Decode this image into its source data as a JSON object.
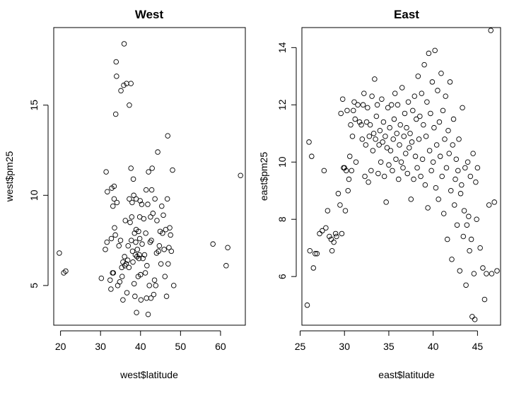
{
  "chart_data": [
    {
      "type": "scatter",
      "title": "West",
      "xlabel": "west$latitude",
      "ylabel": "west$pm25",
      "xlim": [
        18.3,
        66.2
      ],
      "ylim": [
        2.8,
        19.3
      ],
      "xticks": [
        20,
        30,
        40,
        50,
        60
      ],
      "yticks": [
        5,
        10,
        15
      ],
      "grid": false,
      "points": [
        [
          19.7,
          6.8
        ],
        [
          20.8,
          5.7
        ],
        [
          21.3,
          5.8
        ],
        [
          30.2,
          5.4
        ],
        [
          31.2,
          7.0
        ],
        [
          31.4,
          11.3
        ],
        [
          31.6,
          7.4
        ],
        [
          31.7,
          10.2
        ],
        [
          32.4,
          5.3
        ],
        [
          32.6,
          4.8
        ],
        [
          32.7,
          7.6
        ],
        [
          32.8,
          10.4
        ],
        [
          33.0,
          5.7
        ],
        [
          33.1,
          9.4
        ],
        [
          33.2,
          5.7
        ],
        [
          33.4,
          9.8
        ],
        [
          33.4,
          10.5
        ],
        [
          33.5,
          8.2
        ],
        [
          33.7,
          7.8
        ],
        [
          33.8,
          14.5
        ],
        [
          33.9,
          17.4
        ],
        [
          34.0,
          16.6
        ],
        [
          34.1,
          9.6
        ],
        [
          34.3,
          5.0
        ],
        [
          34.6,
          7.2
        ],
        [
          34.8,
          5.2
        ],
        [
          35.0,
          7.5
        ],
        [
          35.1,
          15.8
        ],
        [
          35.3,
          6.0
        ],
        [
          35.4,
          5.5
        ],
        [
          35.6,
          4.2
        ],
        [
          35.6,
          6.3
        ],
        [
          35.8,
          16.1
        ],
        [
          35.9,
          18.4
        ],
        [
          36.0,
          6.6
        ],
        [
          36.1,
          6.1
        ],
        [
          36.2,
          8.6
        ],
        [
          36.4,
          6.2
        ],
        [
          36.5,
          16.2
        ],
        [
          36.6,
          4.6
        ],
        [
          36.8,
          6.4
        ],
        [
          36.9,
          7.2
        ],
        [
          37.1,
          6.0
        ],
        [
          37.2,
          15.0
        ],
        [
          37.2,
          9.8
        ],
        [
          37.4,
          8.5
        ],
        [
          37.6,
          11.5
        ],
        [
          37.6,
          16.2
        ],
        [
          37.7,
          7.5
        ],
        [
          37.8,
          8.8
        ],
        [
          37.9,
          9.6
        ],
        [
          38.0,
          6.9
        ],
        [
          38.1,
          6.3
        ],
        [
          38.2,
          10.9
        ],
        [
          38.3,
          10.0
        ],
        [
          38.4,
          5.1
        ],
        [
          38.5,
          7.9
        ],
        [
          38.6,
          4.4
        ],
        [
          38.7,
          6.7
        ],
        [
          38.8,
          7.4
        ],
        [
          38.9,
          8.1
        ],
        [
          38.9,
          9.8
        ],
        [
          39.0,
          3.5
        ],
        [
          39.1,
          6.6
        ],
        [
          39.2,
          7.0
        ],
        [
          39.4,
          5.5
        ],
        [
          39.5,
          8.0
        ],
        [
          39.6,
          6.5
        ],
        [
          39.7,
          6.7
        ],
        [
          39.8,
          7.6
        ],
        [
          39.8,
          8.8
        ],
        [
          39.9,
          9.7
        ],
        [
          40.0,
          5.6
        ],
        [
          40.1,
          4.2
        ],
        [
          40.3,
          9.5
        ],
        [
          40.4,
          7.3
        ],
        [
          40.6,
          6.5
        ],
        [
          40.8,
          8.7
        ],
        [
          41.0,
          6.7
        ],
        [
          41.2,
          5.7
        ],
        [
          41.3,
          7.9
        ],
        [
          41.4,
          10.3
        ],
        [
          41.5,
          4.3
        ],
        [
          41.6,
          6.1
        ],
        [
          41.8,
          9.5
        ],
        [
          41.9,
          3.4
        ],
        [
          42.0,
          11.3
        ],
        [
          42.2,
          5.0
        ],
        [
          42.4,
          7.4
        ],
        [
          42.5,
          8.8
        ],
        [
          42.6,
          4.3
        ],
        [
          42.7,
          7.5
        ],
        [
          42.8,
          10.3
        ],
        [
          42.9,
          11.5
        ],
        [
          43.1,
          9.0
        ],
        [
          43.3,
          4.5
        ],
        [
          43.5,
          5.3
        ],
        [
          43.6,
          9.8
        ],
        [
          43.8,
          5.0
        ],
        [
          44.0,
          6.8
        ],
        [
          44.1,
          8.6
        ],
        [
          44.3,
          12.4
        ],
        [
          44.5,
          6.9
        ],
        [
          44.7,
          7.2
        ],
        [
          44.9,
          8.0
        ],
        [
          45.1,
          6.2
        ],
        [
          45.3,
          9.4
        ],
        [
          45.5,
          7.9
        ],
        [
          45.7,
          8.9
        ],
        [
          45.9,
          7.0
        ],
        [
          46.1,
          5.5
        ],
        [
          46.3,
          8.1
        ],
        [
          46.5,
          4.4
        ],
        [
          46.7,
          9.8
        ],
        [
          46.8,
          13.3
        ],
        [
          46.9,
          6.2
        ],
        [
          47.1,
          7.1
        ],
        [
          47.3,
          8.2
        ],
        [
          47.5,
          7.8
        ],
        [
          47.7,
          6.9
        ],
        [
          48.0,
          11.4
        ],
        [
          48.3,
          5.0
        ],
        [
          58.1,
          7.3
        ],
        [
          61.4,
          6.1
        ],
        [
          61.8,
          7.1
        ],
        [
          65.0,
          11.1
        ]
      ]
    },
    {
      "type": "scatter",
      "title": "East",
      "xlabel": "east$latitude",
      "ylabel": "east$pm25",
      "xlim": [
        25.2,
        47.6
      ],
      "ylim": [
        4.3,
        14.7
      ],
      "xticks": [
        25,
        30,
        35,
        40,
        45
      ],
      "yticks": [
        6,
        8,
        10,
        12,
        14
      ],
      "grid": false,
      "points": [
        [
          25.8,
          5.0
        ],
        [
          26.0,
          10.7
        ],
        [
          26.1,
          6.9
        ],
        [
          26.3,
          10.2
        ],
        [
          26.5,
          6.3
        ],
        [
          26.7,
          6.8
        ],
        [
          26.9,
          6.8
        ],
        [
          27.2,
          7.5
        ],
        [
          27.5,
          7.6
        ],
        [
          27.7,
          9.7
        ],
        [
          27.9,
          7.7
        ],
        [
          28.1,
          8.3
        ],
        [
          28.3,
          7.4
        ],
        [
          28.5,
          7.3
        ],
        [
          28.6,
          6.9
        ],
        [
          28.8,
          7.2
        ],
        [
          29.0,
          7.5
        ],
        [
          29.1,
          7.4
        ],
        [
          29.3,
          8.9
        ],
        [
          29.5,
          8.5
        ],
        [
          29.6,
          11.7
        ],
        [
          29.7,
          7.5
        ],
        [
          29.8,
          12.2
        ],
        [
          29.9,
          9.8
        ],
        [
          30.0,
          9.8
        ],
        [
          30.1,
          8.3
        ],
        [
          30.2,
          9.7
        ],
        [
          30.3,
          11.8
        ],
        [
          30.4,
          9.0
        ],
        [
          30.5,
          9.4
        ],
        [
          30.6,
          10.2
        ],
        [
          30.7,
          11.3
        ],
        [
          30.8,
          9.7
        ],
        [
          30.9,
          10.9
        ],
        [
          31.0,
          11.8
        ],
        [
          31.1,
          12.1
        ],
        [
          31.2,
          11.5
        ],
        [
          31.3,
          10.0
        ],
        [
          31.5,
          12.0
        ],
        [
          31.7,
          11.4
        ],
        [
          31.9,
          11.3
        ],
        [
          32.0,
          10.8
        ],
        [
          32.1,
          12.0
        ],
        [
          32.2,
          12.4
        ],
        [
          32.3,
          9.5
        ],
        [
          32.4,
          10.6
        ],
        [
          32.5,
          11.4
        ],
        [
          32.6,
          11.9
        ],
        [
          32.7,
          9.3
        ],
        [
          32.8,
          10.9
        ],
        [
          32.9,
          11.3
        ],
        [
          33.0,
          9.7
        ],
        [
          33.1,
          12.3
        ],
        [
          33.2,
          10.4
        ],
        [
          33.3,
          11.0
        ],
        [
          33.4,
          12.9
        ],
        [
          33.5,
          10.8
        ],
        [
          33.6,
          11.6
        ],
        [
          33.7,
          12.0
        ],
        [
          33.8,
          9.6
        ],
        [
          33.9,
          10.6
        ],
        [
          34.0,
          11.1
        ],
        [
          34.1,
          10.0
        ],
        [
          34.2,
          12.2
        ],
        [
          34.3,
          10.7
        ],
        [
          34.4,
          11.4
        ],
        [
          34.5,
          9.5
        ],
        [
          34.6,
          10.9
        ],
        [
          34.7,
          8.6
        ],
        [
          34.8,
          10.5
        ],
        [
          34.9,
          11.9
        ],
        [
          35.0,
          9.9
        ],
        [
          35.1,
          11.2
        ],
        [
          35.2,
          10.4
        ],
        [
          35.3,
          12.0
        ],
        [
          35.4,
          9.7
        ],
        [
          35.5,
          10.8
        ],
        [
          35.6,
          11.5
        ],
        [
          35.7,
          12.4
        ],
        [
          35.8,
          10.1
        ],
        [
          35.9,
          11.0
        ],
        [
          36.0,
          12.0
        ],
        [
          36.1,
          9.4
        ],
        [
          36.2,
          10.6
        ],
        [
          36.3,
          11.3
        ],
        [
          36.4,
          10.0
        ],
        [
          36.5,
          12.6
        ],
        [
          36.6,
          9.8
        ],
        [
          36.7,
          10.9
        ],
        [
          36.8,
          11.7
        ],
        [
          36.9,
          10.3
        ],
        [
          37.0,
          11.2
        ],
        [
          37.1,
          9.6
        ],
        [
          37.2,
          12.1
        ],
        [
          37.3,
          10.5
        ],
        [
          37.4,
          11.0
        ],
        [
          37.5,
          8.7
        ],
        [
          37.6,
          10.7
        ],
        [
          37.7,
          11.8
        ],
        [
          37.8,
          9.4
        ],
        [
          37.9,
          12.3
        ],
        [
          38.0,
          10.2
        ],
        [
          38.1,
          11.5
        ],
        [
          38.2,
          9.8
        ],
        [
          38.3,
          13.0
        ],
        [
          38.4,
          10.8
        ],
        [
          38.5,
          11.6
        ],
        [
          38.6,
          9.5
        ],
        [
          38.7,
          12.4
        ],
        [
          38.8,
          10.1
        ],
        [
          38.9,
          11.3
        ],
        [
          39.0,
          13.4
        ],
        [
          39.1,
          9.2
        ],
        [
          39.2,
          10.9
        ],
        [
          39.3,
          12.1
        ],
        [
          39.4,
          8.4
        ],
        [
          39.5,
          13.8
        ],
        [
          39.6,
          10.4
        ],
        [
          39.7,
          11.7
        ],
        [
          39.8,
          9.7
        ],
        [
          39.9,
          12.8
        ],
        [
          40.0,
          10.0
        ],
        [
          40.1,
          11.2
        ],
        [
          40.2,
          13.9
        ],
        [
          40.3,
          9.1
        ],
        [
          40.4,
          10.6
        ],
        [
          40.5,
          12.5
        ],
        [
          40.6,
          8.7
        ],
        [
          40.7,
          11.4
        ],
        [
          40.8,
          10.2
        ],
        [
          40.9,
          13.1
        ],
        [
          41.0,
          9.5
        ],
        [
          41.1,
          11.8
        ],
        [
          41.2,
          8.2
        ],
        [
          41.3,
          10.8
        ],
        [
          41.4,
          12.3
        ],
        [
          41.5,
          9.8
        ],
        [
          41.6,
          7.3
        ],
        [
          41.7,
          11.1
        ],
        [
          41.8,
          10.3
        ],
        [
          41.9,
          12.8
        ],
        [
          42.0,
          9.0
        ],
        [
          42.1,
          6.6
        ],
        [
          42.2,
          10.6
        ],
        [
          42.3,
          11.5
        ],
        [
          42.4,
          8.5
        ],
        [
          42.5,
          9.4
        ],
        [
          42.6,
          10.1
        ],
        [
          42.7,
          7.8
        ],
        [
          42.8,
          9.7
        ],
        [
          42.9,
          10.8
        ],
        [
          43.0,
          6.2
        ],
        [
          43.1,
          8.9
        ],
        [
          43.2,
          9.2
        ],
        [
          43.3,
          11.9
        ],
        [
          43.4,
          7.4
        ],
        [
          43.5,
          8.3
        ],
        [
          43.6,
          9.8
        ],
        [
          43.7,
          5.7
        ],
        [
          43.8,
          7.8
        ],
        [
          43.9,
          10.0
        ],
        [
          44.0,
          8.1
        ],
        [
          44.1,
          6.9
        ],
        [
          44.2,
          9.5
        ],
        [
          44.3,
          7.3
        ],
        [
          44.4,
          4.6
        ],
        [
          44.5,
          10.3
        ],
        [
          44.6,
          6.1
        ],
        [
          44.7,
          4.5
        ],
        [
          44.8,
          9.3
        ],
        [
          44.9,
          8.0
        ],
        [
          45.0,
          9.8
        ],
        [
          45.3,
          7.0
        ],
        [
          45.6,
          6.3
        ],
        [
          45.8,
          5.2
        ],
        [
          46.0,
          6.1
        ],
        [
          46.3,
          8.5
        ],
        [
          46.5,
          14.6
        ],
        [
          46.6,
          6.1
        ],
        [
          46.9,
          8.6
        ],
        [
          47.2,
          6.2
        ]
      ]
    }
  ]
}
